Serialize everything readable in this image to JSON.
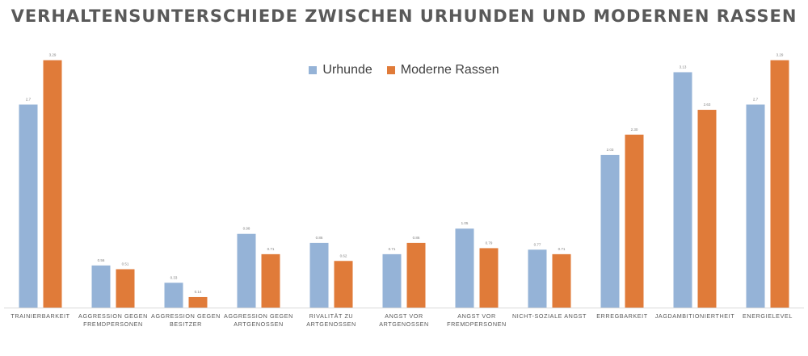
{
  "chart_data": {
    "type": "bar",
    "title": "VERHALTENSUNTERSCHIEDE ZWISCHEN URHUNDEN UND MODERNEN RASSEN",
    "categories": [
      "TRAINIERBARKEIT",
      "AGGRESSION GEGEN FREMDPERSONEN",
      "AGGRESSION GEGEN BESITZER",
      "AGGRESSION GEGEN ARTGENOSSEN",
      "RIVALITÄT ZU ARTGENOSSEN",
      "ANGST VOR ARTGENOSSEN",
      "ANGST VOR FREMDPERSONEN",
      "NICHT-SOZIALE ANGST",
      "ERREGBARKEIT",
      "JAGDAMBITIONIERTHEIT",
      "ENERGIELEVEL"
    ],
    "category_lines": [
      [
        "TRAINIERBARKEIT"
      ],
      [
        "AGGRESSION GEGEN",
        "FREMDPERSONEN"
      ],
      [
        "AGGRESSION GEGEN",
        "BESITZER"
      ],
      [
        "AGGRESSION GEGEN",
        "ARTGENOSSEN"
      ],
      [
        "RIVALITÄT ZU",
        "ARTGENOSSEN"
      ],
      [
        "ANGST VOR",
        "ARTGENOSSEN"
      ],
      [
        "ANGST VOR",
        "FREMDPERSONEN"
      ],
      [
        "NICHT-SOZIALE ANGST"
      ],
      [
        "ERREGBARKEIT"
      ],
      [
        "JAGDAMBITIONIERTHEIT"
      ],
      [
        "ENERGIELEVEL"
      ]
    ],
    "series": [
      {
        "name": "Urhunde",
        "color": "#95b3d7",
        "values": [
          2.7,
          0.56,
          0.33,
          0.98,
          0.86,
          0.71,
          1.05,
          0.77,
          2.03,
          3.13,
          2.7
        ],
        "labels": [
          "2.7",
          "0.56",
          "0.33",
          "0.98",
          "0.86",
          "0.71",
          "1.05",
          "0.77",
          "2.03",
          "3.13",
          "2.7"
        ]
      },
      {
        "name": "Moderne Rassen",
        "color": "#e07b39",
        "values": [
          3.29,
          0.51,
          0.14,
          0.71,
          0.62,
          0.86,
          0.79,
          0.71,
          2.3,
          2.63,
          3.29
        ],
        "labels": [
          "3.29",
          "0.51",
          "0.14",
          "0.71",
          "0.62",
          "0.86",
          "0.79",
          "0.71",
          "2.30",
          "2.63",
          "3.29"
        ]
      }
    ],
    "xlabel": "",
    "ylabel": "",
    "ylim": [
      0,
      3.5
    ],
    "grid": false,
    "legend_position": "top"
  }
}
